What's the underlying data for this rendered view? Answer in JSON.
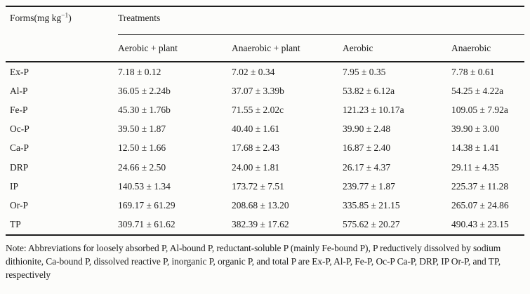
{
  "page": {
    "background": "#fcfcfa",
    "text_color": "#1e1e1e",
    "rule_color": "#1d1d1d"
  },
  "table": {
    "forms_header": {
      "prefix": "Forms(mg kg",
      "superscript": "−1",
      "suffix": ")"
    },
    "treatments_header": "Treatments",
    "columns": [
      "Aerobic + plant",
      "Anaerobic + plant",
      "Aerobic",
      "Anaerobic"
    ],
    "rows": [
      {
        "form": "Ex-P",
        "values": [
          "7.18 ± 0.12",
          "7.02 ± 0.34",
          "7.95 ± 0.35",
          "7.78 ± 0.61"
        ]
      },
      {
        "form": "Al-P",
        "values": [
          "36.05 ± 2.24b",
          "37.07 ± 3.39b",
          "53.82 ± 6.12a",
          "54.25 ± 4.22a"
        ]
      },
      {
        "form": "Fe-P",
        "values": [
          "45.30 ± 1.76b",
          "71.55 ± 2.02c",
          "121.23 ± 10.17a",
          "109.05 ± 7.92a"
        ]
      },
      {
        "form": "Oc-P",
        "values": [
          "39.50 ± 1.87",
          "40.40 ± 1.61",
          "39.90 ± 2.48",
          "39.90 ± 3.00"
        ]
      },
      {
        "form": "Ca-P",
        "values": [
          "12.50 ± 1.66",
          "17.68 ± 2.43",
          "16.87 ± 2.40",
          "14.38 ± 1.41"
        ]
      },
      {
        "form": "DRP",
        "values": [
          "24.66 ± 2.50",
          "24.00 ± 1.81",
          "26.17 ± 4.37",
          "29.11 ± 4.35"
        ]
      },
      {
        "form": "IP",
        "values": [
          "140.53 ± 1.34",
          "173.72 ± 7.51",
          "239.77 ± 1.87",
          "225.37 ± 11.28"
        ]
      },
      {
        "form": "Or-P",
        "values": [
          "169.17 ± 61.29",
          "208.68 ± 13.20",
          "335.85 ± 21.15",
          "265.07 ± 24.86"
        ]
      },
      {
        "form": "TP",
        "values": [
          "309.71 ± 61.62",
          "382.39 ± 17.62",
          "575.62 ± 20.27",
          "490.43 ± 23.15"
        ]
      }
    ]
  },
  "note": "Note: Abbreviations for loosely absorbed P, Al-bound P, reductant-soluble P (mainly Fe-bound P), P reductively dissolved by sodium dithionite, Ca-bound P, dissolved reactive P, inorganic P, organic P, and total P are Ex-P, Al-P, Fe-P, Oc-P Ca-P, DRP, IP Or-P, and TP, respectively"
}
